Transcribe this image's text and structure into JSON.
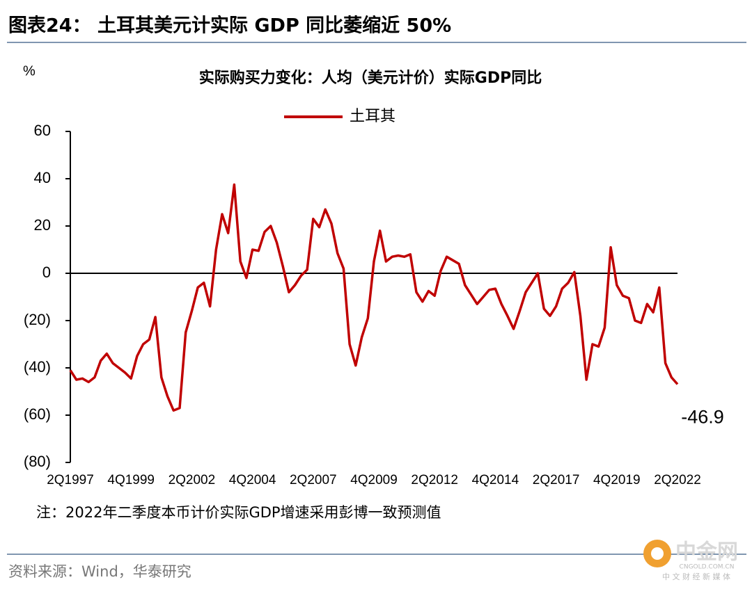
{
  "header": {
    "title": "图表24：  土耳其美元计实际 GDP 同比萎缩近 50%"
  },
  "chart_data": {
    "type": "line",
    "title": "实际购买力变化：人均（美元计价）实际GDP同比",
    "y_unit": "%",
    "categories": [
      "2Q1997",
      null,
      null,
      null,
      null,
      null,
      null,
      null,
      null,
      null,
      "4Q1999",
      null,
      null,
      null,
      null,
      null,
      null,
      null,
      null,
      null,
      "2Q2002",
      null,
      null,
      null,
      null,
      null,
      null,
      null,
      null,
      null,
      "4Q2004",
      null,
      null,
      null,
      null,
      null,
      null,
      null,
      null,
      null,
      "2Q2007",
      null,
      null,
      null,
      null,
      null,
      null,
      null,
      null,
      null,
      "4Q2009",
      null,
      null,
      null,
      null,
      null,
      null,
      null,
      null,
      null,
      "2Q2012",
      null,
      null,
      null,
      null,
      null,
      null,
      null,
      null,
      null,
      "4Q2014",
      null,
      null,
      null,
      null,
      null,
      null,
      null,
      null,
      null,
      "2Q2017",
      null,
      null,
      null,
      null,
      null,
      null,
      null,
      null,
      null,
      "4Q2019",
      null,
      null,
      null,
      null,
      null,
      null,
      null,
      null,
      null,
      "2Q2022"
    ],
    "series": [
      {
        "name": "土耳其",
        "color": "#c00000",
        "values": [
          -41,
          -45,
          -44.5,
          -46,
          -44,
          -37,
          -34,
          -38,
          -40,
          -42,
          -44.5,
          -35,
          -30,
          -28,
          -18.5,
          -44,
          -52,
          -58,
          -57,
          -25,
          -16,
          -6,
          -4,
          -14,
          10,
          25,
          17,
          37.5,
          5,
          -2,
          10,
          9.5,
          17.5,
          20,
          13,
          3,
          -8,
          -5,
          -1,
          1.5,
          23,
          19.5,
          27,
          21,
          8.5,
          2,
          -30,
          -39,
          -27,
          -19,
          5,
          18,
          5,
          7,
          7.5,
          7,
          8,
          -8,
          -12,
          -7.5,
          -9.5,
          1,
          7,
          5.5,
          4,
          -5,
          -9,
          -13,
          -10,
          -7,
          -6.5,
          -13,
          -18,
          -23.5,
          -16,
          -8,
          -4,
          0,
          -15,
          -18,
          -14,
          -6.5,
          -4,
          0.5,
          -18,
          -45,
          -30,
          -31,
          -23,
          11,
          -5,
          -9.5,
          -10.5,
          -20,
          -21,
          -13,
          -16.5,
          -6,
          -38,
          -44,
          -46.9
        ]
      }
    ],
    "ylim": [
      -80,
      60
    ],
    "yticks": [
      {
        "value": -80,
        "label": "(80)"
      },
      {
        "value": -60,
        "label": "(60)"
      },
      {
        "value": -40,
        "label": "(40)"
      },
      {
        "value": -20,
        "label": "(20)"
      },
      0,
      20,
      40,
      60
    ],
    "annotation": "-46.9",
    "legend": "top"
  },
  "note": "注：2022年二季度本币计价实际GDP增速采用彭博一致预测值",
  "source": "资料来源：Wind，华泰研究",
  "watermark": {
    "name": "中金网",
    "site": "CNGOLD.COM.CN",
    "slogan": "中 文 财 经 新 媒 体"
  }
}
